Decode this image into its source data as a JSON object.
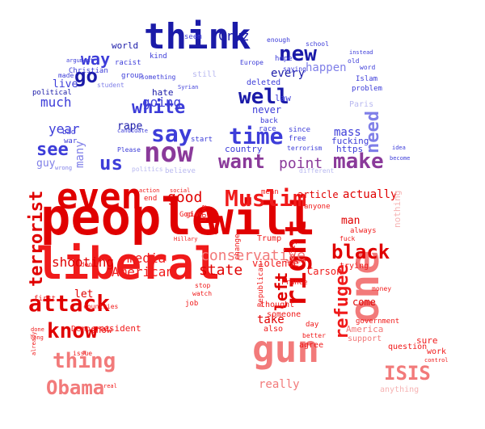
{
  "title": "Word cloud shaped as a red hat with a blue cap",
  "colors": {
    "blue_dark": "#1a1aa8",
    "blue_mid": "#3d3dd9",
    "blue_light": "#7f7fe8",
    "blue_pale": "#b8b8f0",
    "purple": "#8a3a9a",
    "red_dark": "#e00000",
    "red_mid": "#f01a1a",
    "red_light": "#f27a7a",
    "red_pale": "#f6b3b3"
  },
  "words_top": [
    {
      "text": "think",
      "size": 44,
      "color": "blue_dark"
    },
    {
      "text": "now",
      "size": 34,
      "color": "purple"
    },
    {
      "text": "time",
      "size": 28,
      "color": "blue_mid"
    },
    {
      "text": "say",
      "size": 28,
      "color": "blue_mid"
    },
    {
      "text": "well",
      "size": 26,
      "color": "blue_dark"
    },
    {
      "text": "new",
      "size": 26,
      "color": "blue_dark"
    },
    {
      "text": "make",
      "size": 26,
      "color": "purple"
    },
    {
      "text": "want",
      "size": 24,
      "color": "purple"
    },
    {
      "text": "white",
      "size": 22,
      "color": "blue_mid"
    },
    {
      "text": "see",
      "size": 22,
      "color": "blue_mid"
    },
    {
      "text": "us",
      "size": 24,
      "color": "blue_mid"
    },
    {
      "text": "go",
      "size": 24,
      "color": "blue_dark"
    },
    {
      "text": "way",
      "size": 20,
      "color": "blue_mid"
    },
    {
      "text": "need",
      "size": 22,
      "color": "blue_light"
    },
    {
      "text": "point",
      "size": 18,
      "color": "purple"
    },
    {
      "text": "going",
      "size": 16,
      "color": "blue_mid"
    },
    {
      "text": "much",
      "size": 16,
      "color": "blue_mid"
    },
    {
      "text": "year",
      "size": 16,
      "color": "blue_mid"
    },
    {
      "text": "Cruz",
      "size": 16,
      "color": "blue_dark"
    },
    {
      "text": "many",
      "size": 14,
      "color": "blue_light"
    },
    {
      "text": "every",
      "size": 14,
      "color": "blue_dark"
    },
    {
      "text": "happen",
      "size": 14,
      "color": "blue_light"
    },
    {
      "text": "live",
      "size": 13,
      "color": "blue_mid"
    },
    {
      "text": "mass",
      "size": 14,
      "color": "blue_mid"
    },
    {
      "text": "never",
      "size": 12,
      "color": "blue_mid"
    },
    {
      "text": "rape",
      "size": 13,
      "color": "blue_dark"
    },
    {
      "text": "guy",
      "size": 13,
      "color": "blue_light"
    },
    {
      "text": "fucking",
      "size": 11,
      "color": "blue_mid"
    },
    {
      "text": "https",
      "size": 11,
      "color": "blue_mid"
    },
    {
      "text": "country",
      "size": 11,
      "color": "blue_mid"
    },
    {
      "text": "deleted",
      "size": 10,
      "color": "blue_mid"
    },
    {
      "text": "world",
      "size": 11,
      "color": "blue_dark"
    },
    {
      "text": "hate",
      "size": 11,
      "color": "blue_dark"
    },
    {
      "text": "political",
      "size": 9,
      "color": "blue_dark"
    },
    {
      "text": "Christian",
      "size": 9,
      "color": "blue_mid"
    },
    {
      "text": "racist",
      "size": 9,
      "color": "blue_mid"
    },
    {
      "text": "group",
      "size": 9,
      "color": "blue_mid"
    },
    {
      "text": "kind",
      "size": 9,
      "color": "blue_mid"
    },
    {
      "text": "seem",
      "size": 9,
      "color": "blue_mid"
    },
    {
      "text": "enough",
      "size": 8,
      "color": "blue_mid"
    },
    {
      "text": "hope",
      "size": 9,
      "color": "blue_mid"
    },
    {
      "text": "Islam",
      "size": 9,
      "color": "blue_mid"
    },
    {
      "text": "problem",
      "size": 9,
      "color": "blue_mid"
    },
    {
      "text": "Paris",
      "size": 10,
      "color": "blue_pale"
    },
    {
      "text": "since",
      "size": 9,
      "color": "blue_mid"
    },
    {
      "text": "free",
      "size": 9,
      "color": "blue_mid"
    },
    {
      "text": "terrorism",
      "size": 8,
      "color": "blue_mid"
    },
    {
      "text": "Europe",
      "size": 8,
      "color": "blue_mid"
    },
    {
      "text": "law",
      "size": 11,
      "color": "blue_mid"
    },
    {
      "text": "back",
      "size": 9,
      "color": "blue_mid"
    },
    {
      "text": "race",
      "size": 9,
      "color": "blue_mid"
    },
    {
      "text": "something",
      "size": 8,
      "color": "blue_mid"
    },
    {
      "text": "student",
      "size": 8,
      "color": "blue_light"
    },
    {
      "text": "made",
      "size": 8,
      "color": "blue_mid"
    },
    {
      "text": "still",
      "size": 10,
      "color": "blue_pale"
    },
    {
      "text": "Please",
      "size": 8,
      "color": "blue_mid"
    },
    {
      "text": "start",
      "size": 9,
      "color": "blue_mid"
    },
    {
      "text": "war",
      "size": 9,
      "color": "blue_mid"
    },
    {
      "text": "bad",
      "size": 9,
      "color": "blue_mid"
    },
    {
      "text": "believe",
      "size": 9,
      "color": "blue_pale"
    },
    {
      "text": "politics",
      "size": 8,
      "color": "blue_pale"
    },
    {
      "text": "different",
      "size": 8,
      "color": "blue_pale"
    },
    {
      "text": "school",
      "size": 8,
      "color": "blue_mid"
    },
    {
      "text": "saying",
      "size": 8,
      "color": "blue_mid"
    },
    {
      "text": "old",
      "size": 8,
      "color": "blue_mid"
    },
    {
      "text": "word",
      "size": 8,
      "color": "blue_mid"
    },
    {
      "text": "candidate",
      "size": 7,
      "color": "blue_mid"
    },
    {
      "text": "Syrian",
      "size": 7,
      "color": "blue_mid"
    },
    {
      "text": "idea",
      "size": 7,
      "color": "blue_mid"
    },
    {
      "text": "become",
      "size": 7,
      "color": "blue_mid"
    },
    {
      "text": "wrong",
      "size": 7,
      "color": "blue_light"
    },
    {
      "text": "argument",
      "size": 7,
      "color": "blue_mid"
    },
    {
      "text": "instead",
      "size": 7,
      "color": "blue_mid"
    }
  ],
  "words_bottom": [
    {
      "text": "people",
      "size": 62,
      "color": "red_dark"
    },
    {
      "text": "will",
      "size": 56,
      "color": "red_dark"
    },
    {
      "text": "liberal",
      "size": 54,
      "color": "red_mid"
    },
    {
      "text": "even",
      "size": 44,
      "color": "red_dark"
    },
    {
      "text": "gun",
      "size": 46,
      "color": "red_light"
    },
    {
      "text": "one",
      "size": 50,
      "color": "red_light"
    },
    {
      "text": "right",
      "size": 36,
      "color": "red_dark"
    },
    {
      "text": "Muslim",
      "size": 28,
      "color": "red_mid"
    },
    {
      "text": "attack",
      "size": 28,
      "color": "red_dark"
    },
    {
      "text": "know",
      "size": 26,
      "color": "red_dark"
    },
    {
      "text": "thing",
      "size": 26,
      "color": "red_light"
    },
    {
      "text": "Obama",
      "size": 24,
      "color": "red_light"
    },
    {
      "text": "ISIS",
      "size": 24,
      "color": "red_light"
    },
    {
      "text": "black",
      "size": 24,
      "color": "red_dark"
    },
    {
      "text": "refugee",
      "size": 22,
      "color": "red_mid"
    },
    {
      "text": "terrorist",
      "size": 22,
      "color": "red_dark"
    },
    {
      "text": "conservative",
      "size": 18,
      "color": "red_light"
    },
    {
      "text": "left",
      "size": 20,
      "color": "red_dark"
    },
    {
      "text": "good",
      "size": 18,
      "color": "red_dark"
    },
    {
      "text": "state",
      "size": 18,
      "color": "red_dark"
    },
    {
      "text": "media",
      "size": 16,
      "color": "red_mid"
    },
    {
      "text": "American",
      "size": 16,
      "color": "red_mid"
    },
    {
      "text": "shooting",
      "size": 16,
      "color": "red_dark"
    },
    {
      "text": "actually",
      "size": 14,
      "color": "red_dark"
    },
    {
      "text": "really",
      "size": 14,
      "color": "red_light"
    },
    {
      "text": "take",
      "size": 14,
      "color": "red_dark"
    },
    {
      "text": "come",
      "size": 12,
      "color": "red_dark"
    },
    {
      "text": "man",
      "size": 13,
      "color": "red_dark"
    },
    {
      "text": "let",
      "size": 13,
      "color": "red_dark"
    },
    {
      "text": "article",
      "size": 12,
      "color": "red_dark"
    },
    {
      "text": "Carson",
      "size": 12,
      "color": "red_mid"
    },
    {
      "text": "violence",
      "size": 12,
      "color": "red_mid"
    },
    {
      "text": "show",
      "size": 11,
      "color": "red_mid"
    },
    {
      "text": "president",
      "size": 11,
      "color": "red_mid"
    },
    {
      "text": "America",
      "size": 11,
      "color": "red_light"
    },
    {
      "text": "support",
      "size": 10,
      "color": "red_light"
    },
    {
      "text": "question",
      "size": 10,
      "color": "red_mid"
    },
    {
      "text": "sure",
      "size": 11,
      "color": "red_mid"
    },
    {
      "text": "work",
      "size": 10,
      "color": "red_mid"
    },
    {
      "text": "anything",
      "size": 10,
      "color": "red_pale"
    },
    {
      "text": "Democrat",
      "size": 10,
      "color": "red_mid"
    },
    {
      "text": "someone",
      "size": 10,
      "color": "red_mid"
    },
    {
      "text": "thought",
      "size": 10,
      "color": "red_mid"
    },
    {
      "text": "agree",
      "size": 10,
      "color": "red_mid"
    },
    {
      "text": "trying",
      "size": 10,
      "color": "red_mid"
    },
    {
      "text": "Trump",
      "size": 10,
      "color": "red_mid"
    },
    {
      "text": "France",
      "size": 9,
      "color": "red_mid"
    },
    {
      "text": "Republican",
      "size": 9,
      "color": "red_mid"
    },
    {
      "text": "nothing",
      "size": 11,
      "color": "red_pale"
    },
    {
      "text": "government",
      "size": 9,
      "color": "red_mid"
    },
    {
      "text": "money",
      "size": 8,
      "color": "red_mid"
    },
    {
      "text": "countries",
      "size": 8,
      "color": "red_mid"
    },
    {
      "text": "issue",
      "size": 8,
      "color": "red_mid"
    },
    {
      "text": "first",
      "size": 9,
      "color": "red_mid"
    },
    {
      "text": "job",
      "size": 9,
      "color": "red_mid"
    },
    {
      "text": "stop",
      "size": 8,
      "color": "red_mid"
    },
    {
      "text": "day",
      "size": 9,
      "color": "red_mid"
    },
    {
      "text": "also",
      "size": 10,
      "color": "red_mid"
    },
    {
      "text": "anyone",
      "size": 9,
      "color": "red_mid"
    },
    {
      "text": "always",
      "size": 9,
      "color": "red_mid"
    },
    {
      "text": "mean",
      "size": 9,
      "color": "red_mid"
    },
    {
      "text": "change",
      "size": 9,
      "color": "red_mid"
    },
    {
      "text": "pretty",
      "size": 9,
      "color": "red_mid"
    },
    {
      "text": "love",
      "size": 9,
      "color": "red_mid"
    },
    {
      "text": "end",
      "size": 9,
      "color": "red_mid"
    },
    {
      "text": "give",
      "size": 9,
      "color": "red_mid"
    },
    {
      "text": "God",
      "size": 9,
      "color": "red_mid"
    },
    {
      "text": "video",
      "size": 8,
      "color": "red_mid"
    },
    {
      "text": "watch",
      "size": 8,
      "color": "red_mid"
    },
    {
      "text": "better",
      "size": 8,
      "color": "red_mid"
    },
    {
      "text": "fuck",
      "size": 8,
      "color": "red_mid"
    },
    {
      "text": "already",
      "size": 7,
      "color": "red_mid"
    },
    {
      "text": "long",
      "size": 7,
      "color": "red_mid"
    },
    {
      "text": "done",
      "size": 7,
      "color": "red_mid"
    },
    {
      "text": "real",
      "size": 7,
      "color": "red_mid"
    },
    {
      "text": "control",
      "size": 7,
      "color": "red_mid"
    },
    {
      "text": "Hillary",
      "size": 7,
      "color": "red_mid"
    },
    {
      "text": "action",
      "size": 7,
      "color": "red_mid"
    },
    {
      "text": "social",
      "size": 7,
      "color": "red_mid"
    },
    {
      "text": "around",
      "size": 7,
      "color": "red_mid"
    }
  ]
}
